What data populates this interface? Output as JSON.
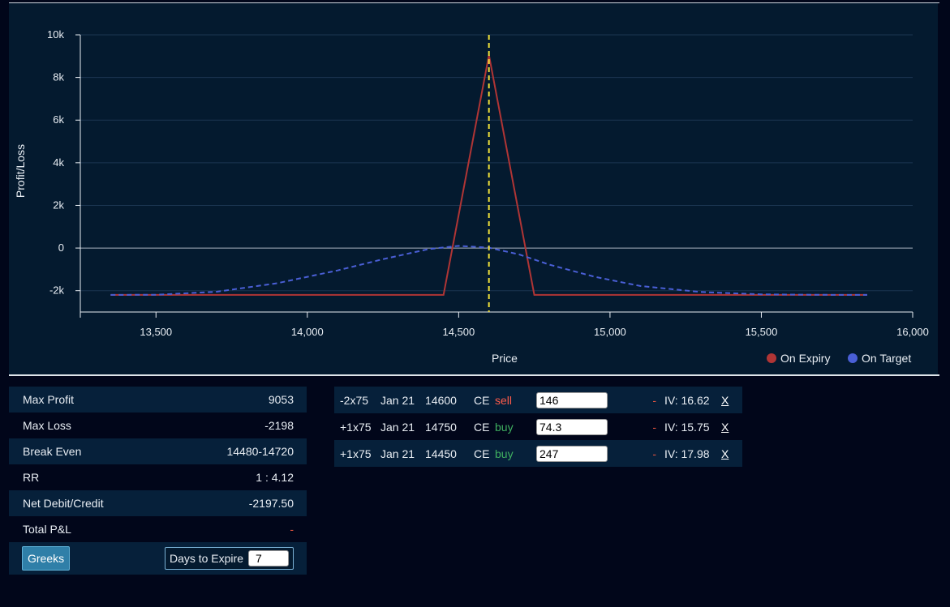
{
  "chart_data": {
    "type": "line",
    "xlabel": "Price",
    "ylabel": "Profit/Loss",
    "xlim": [
      13250,
      16000
    ],
    "ylim": [
      -3000,
      10000
    ],
    "x_ticks": [
      13500,
      14000,
      14500,
      15000,
      15500,
      16000
    ],
    "x_tick_labels": [
      "13,500",
      "14,000",
      "14,500",
      "15,000",
      "15,500",
      "16,000"
    ],
    "y_ticks": [
      -2000,
      0,
      2000,
      4000,
      6000,
      8000,
      10000
    ],
    "y_tick_labels": [
      "-2k",
      "0",
      "2k",
      "4k",
      "6k",
      "8k",
      "10k"
    ],
    "grid": true,
    "legend_position": "bottom-right",
    "target_price": 14600,
    "series": [
      {
        "name": "On Expiry",
        "color": "#b03535",
        "style": "solid",
        "x": [
          13350,
          14450,
          14600,
          14750,
          15850
        ],
        "y": [
          -2198,
          -2198,
          9053,
          -2198,
          -2198
        ]
      },
      {
        "name": "On Target",
        "color": "#4a5fd6",
        "style": "dashed",
        "x": [
          13350,
          13500,
          13700,
          13900,
          14100,
          14250,
          14400,
          14500,
          14600,
          14700,
          14800,
          14950,
          15100,
          15300,
          15500,
          15700,
          15850
        ],
        "y": [
          -2198,
          -2190,
          -2050,
          -1650,
          -1050,
          -520,
          -50,
          100,
          20,
          -300,
          -780,
          -1350,
          -1780,
          -2060,
          -2170,
          -2195,
          -2198
        ]
      }
    ]
  },
  "stats": {
    "rows": [
      {
        "label": "Max Profit",
        "value": "9053"
      },
      {
        "label": "Max Loss",
        "value": "-2198"
      },
      {
        "label": "Break Even",
        "value": "14480-14720"
      },
      {
        "label": "RR",
        "value": "1 : 4.12"
      },
      {
        "label": "Net Debit/Credit",
        "value": "-2197.50"
      },
      {
        "label": "Total P&L",
        "value": "-"
      }
    ],
    "greeks_label": "Greeks",
    "days_to_expire_label": "Days to Expire",
    "days_to_expire_value": "7"
  },
  "legs": [
    {
      "qty": "-2x75",
      "expiry": "Jan 21",
      "strike": "14600",
      "type": "CE",
      "side": "sell",
      "price": "146",
      "change": "-",
      "iv": "IV: 16.62",
      "remove": "X"
    },
    {
      "qty": "+1x75",
      "expiry": "Jan 21",
      "strike": "14750",
      "type": "CE",
      "side": "buy",
      "price": "74.3",
      "change": "-",
      "iv": "IV: 15.75",
      "remove": "X"
    },
    {
      "qty": "+1x75",
      "expiry": "Jan 21",
      "strike": "14450",
      "type": "CE",
      "side": "buy",
      "price": "247",
      "change": "-",
      "iv": "IV: 17.98",
      "remove": "X"
    }
  ]
}
